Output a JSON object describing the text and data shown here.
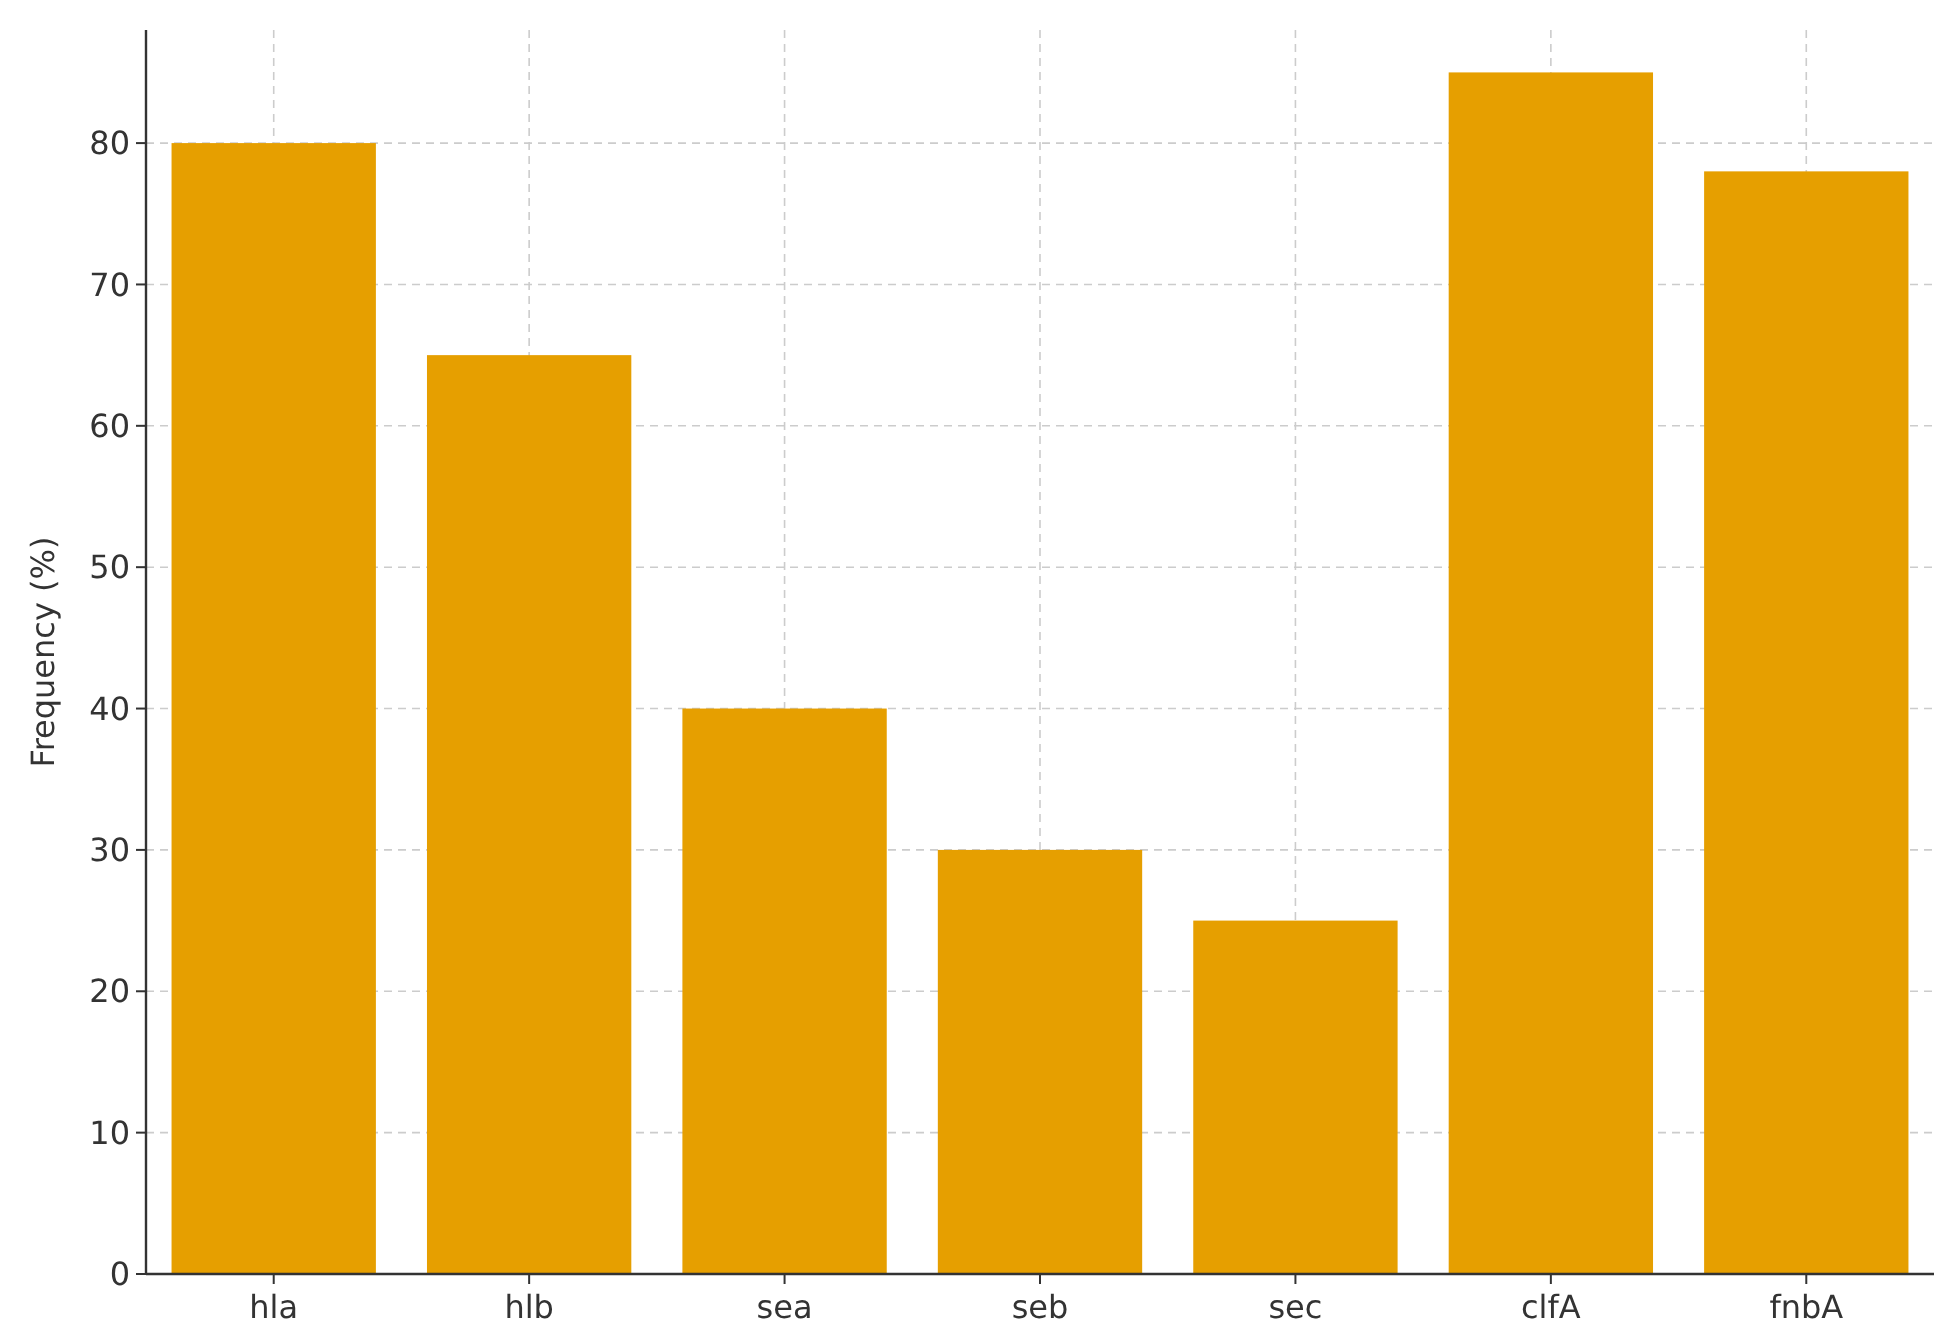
{
  "chart_data": {
    "type": "bar",
    "ylabel": "Frequency (%)",
    "categories": [
      "hla",
      "hlb",
      "sea",
      "seb",
      "sec",
      "clfA",
      "fnbA"
    ],
    "values": [
      80,
      65,
      40,
      30,
      25,
      85,
      78
    ],
    "color": "#e69f00",
    "ylim": [
      0,
      88
    ],
    "yticks": [
      0,
      10,
      20,
      30,
      40,
      50,
      60,
      70,
      80
    ],
    "grid": true
  }
}
